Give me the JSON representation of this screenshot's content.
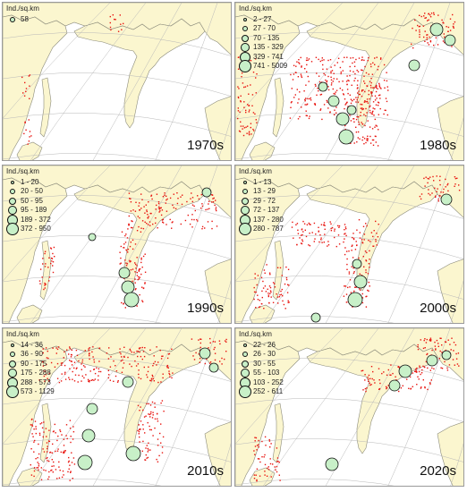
{
  "panels": [
    {
      "decade": "1970s",
      "legend_title": "Ind./sq.km",
      "legend_classes": [
        "58"
      ]
    },
    {
      "decade": "1980s",
      "legend_title": "Ind./sq.km",
      "legend_classes": [
        "2 - 27",
        "27 - 70",
        "70 - 135",
        "135 - 329",
        "329 - 741",
        "741 - 5009"
      ]
    },
    {
      "decade": "1990s",
      "legend_title": "Ind./sq.km",
      "legend_classes": [
        "1 - 20",
        "20 - 50",
        "50 - 95",
        "95 - 189",
        "189 - 372",
        "372 - 950"
      ]
    },
    {
      "decade": "2000s",
      "legend_title": "Ind./sq.km",
      "legend_classes": [
        "1 - 13",
        "13 - 29",
        "29 - 72",
        "72 - 137",
        "137 - 280",
        "280 - 787"
      ]
    },
    {
      "decade": "2010s",
      "legend_title": "Ind./sq.km",
      "legend_classes": [
        "14 - 36",
        "36 - 90",
        "90 - 175",
        "175 - 288",
        "288 - 573",
        "573 - 1129"
      ]
    },
    {
      "decade": "2020s",
      "legend_title": "Ind./sq.km",
      "legend_classes": [
        "22 - 26",
        "26 - 30",
        "30 - 55",
        "55 - 103",
        "103 - 252",
        "252 - 611"
      ]
    }
  ],
  "colors": {
    "land": "#fbf6cf",
    "sea": "#ffffff",
    "survey_station": "#e8140f",
    "density_circle_fill": "#c8f0c8",
    "density_circle_stroke": "#111111",
    "graticule": "#b8b8b8",
    "coastline": "#8a8a7a"
  }
}
